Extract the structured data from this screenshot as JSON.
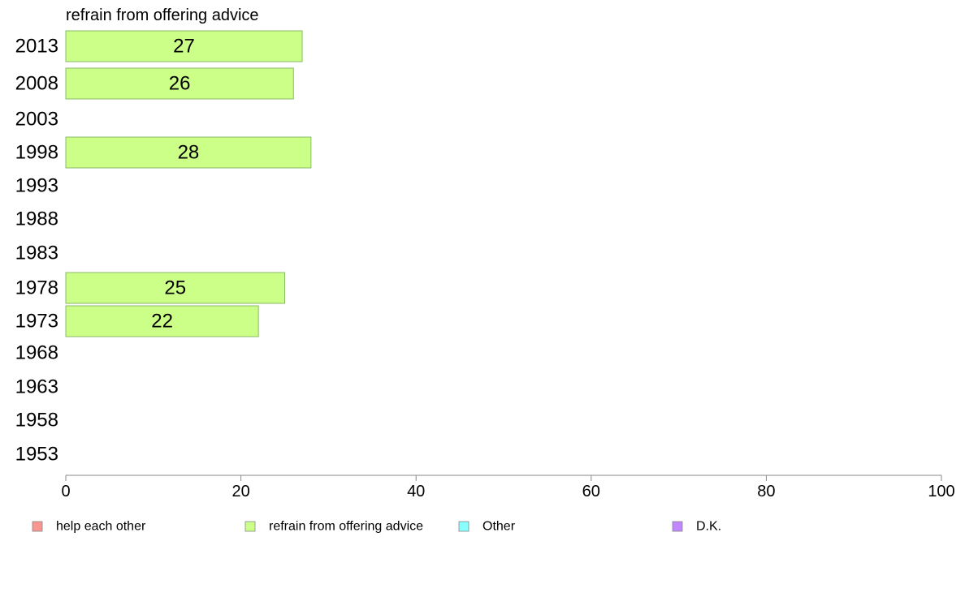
{
  "chart_data": {
    "type": "bar",
    "orientation": "horizontal",
    "title": "refrain from offering advice",
    "categories": [
      "2013",
      "2008",
      "2003",
      "1998",
      "1993",
      "1988",
      "1983",
      "1978",
      "1973",
      "1968",
      "1963",
      "1958",
      "1953"
    ],
    "series": [
      {
        "name": "refrain from offering advice",
        "values": [
          27,
          26,
          null,
          28,
          null,
          null,
          null,
          25,
          22,
          null,
          null,
          null,
          null
        ]
      }
    ],
    "xlim": [
      0,
      100
    ],
    "xticks": [
      0,
      20,
      40,
      60,
      80,
      100
    ],
    "grid": false,
    "legend": {
      "position": "bottom",
      "items": [
        {
          "label": "help each other",
          "color": "#f8968f"
        },
        {
          "label": "refrain from offering advice",
          "color": "#ccff88"
        },
        {
          "label": "Other",
          "color": "#88ffff"
        },
        {
          "label": "D.K.",
          "color": "#c088ff"
        }
      ]
    },
    "bar_color": "#ccff88",
    "bar_stroke": "#88bb66"
  }
}
